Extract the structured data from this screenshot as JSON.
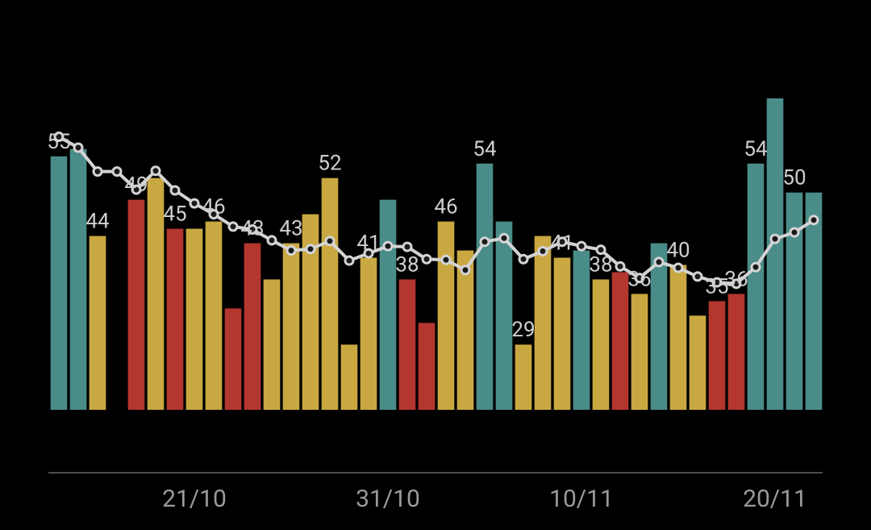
{
  "chart_data": {
    "type": "bar",
    "categories": [
      null,
      null,
      null,
      null,
      null,
      null,
      null,
      "21/10",
      null,
      null,
      null,
      null,
      null,
      null,
      null,
      null,
      null,
      "31/10",
      null,
      null,
      null,
      null,
      null,
      null,
      null,
      null,
      null,
      "10/11",
      null,
      null,
      null,
      null,
      null,
      null,
      null,
      null,
      null,
      "20/11",
      null,
      null
    ],
    "values": [
      55,
      56,
      44,
      null,
      49,
      52,
      45,
      45,
      46,
      34,
      43,
      38,
      43,
      47,
      52,
      29,
      41,
      49,
      38,
      32,
      46,
      42,
      54,
      46,
      29,
      44,
      41,
      42,
      38,
      39,
      36,
      43,
      40,
      33,
      35,
      36,
      54,
      63,
      50,
      50
    ],
    "value_labels": [
      "55",
      null,
      "44",
      null,
      "49",
      null,
      "45",
      null,
      "46",
      null,
      "43",
      null,
      "43",
      null,
      "52",
      null,
      "41",
      null,
      "38",
      null,
      "46",
      null,
      "54",
      null,
      "29",
      null,
      "41",
      null,
      "38",
      null,
      "36",
      null,
      "40",
      null,
      "35",
      "36",
      "54",
      null,
      "50",
      null
    ],
    "colors": [
      "#4a8c87",
      "#4a8c87",
      "#c9a842",
      null,
      "#b3362f",
      "#c9a842",
      "#b3362f",
      "#c9a842",
      "#c9a842",
      "#b3362f",
      "#b3362f",
      "#c9a842",
      "#c9a842",
      "#c9a842",
      "#c9a842",
      "#c9a842",
      "#c9a842",
      "#4a8c87",
      "#b3362f",
      "#b3362f",
      "#c9a842",
      "#c9a842",
      "#4a8c87",
      "#4a8c87",
      "#c9a842",
      "#c9a842",
      "#c9a842",
      "#4a8c87",
      "#c9a842",
      "#b3362f",
      "#c9a842",
      "#4a8c87",
      "#c9a842",
      "#c9a842",
      "#b3362f",
      "#b3362f",
      "#4a8c87",
      "#4a8c87",
      "#4a8c87",
      "#4a8c87"
    ],
    "line": {
      "color": "#d4d4d4",
      "values": [
        57.7,
        56.2,
        52.9,
        52.9,
        50.4,
        53,
        50.3,
        48.5,
        47,
        45.3,
        44.9,
        43.4,
        42,
        42.2,
        43.3,
        40.6,
        41.6,
        42.6,
        42.5,
        40.8,
        40.7,
        39.3,
        43.2,
        43.7,
        40.8,
        41.9,
        43.2,
        42.6,
        42.1,
        39.8,
        38.2,
        40.4,
        39.6,
        38.4,
        37.6,
        37.4,
        39.7,
        43.6,
        44.5,
        46.2
      ]
    },
    "ylim": [
      20,
      65
    ]
  }
}
